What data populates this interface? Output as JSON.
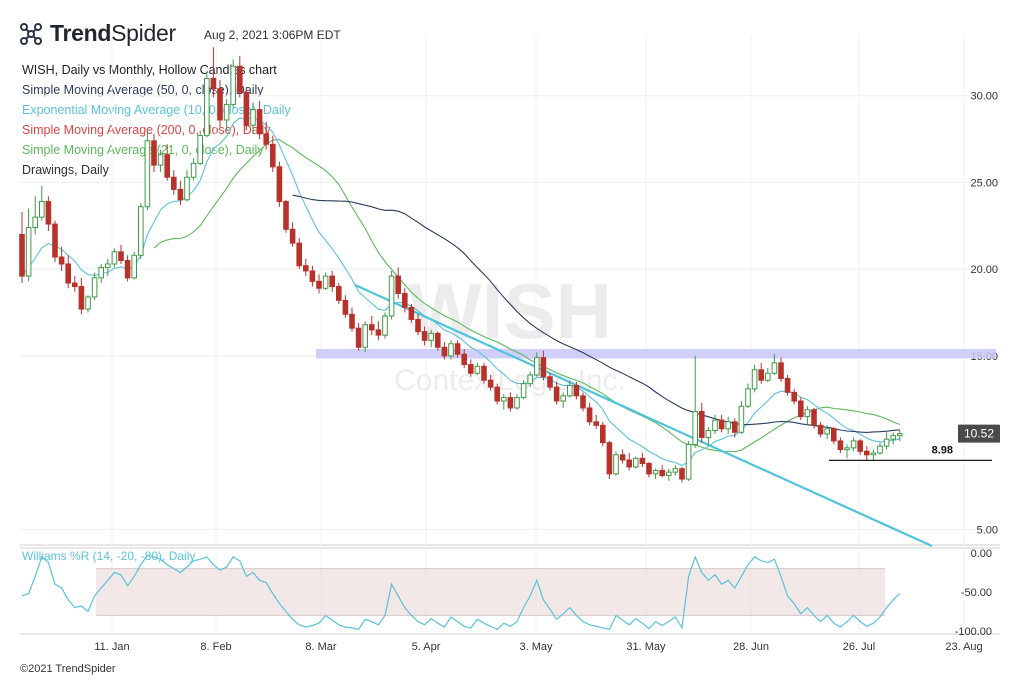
{
  "header": {
    "brand_name_bold": "Trend",
    "brand_name_light": "Spider",
    "timestamp": "Aug 2, 2021 3:06PM EDT",
    "chart_title": "WISH, Daily vs Monthly, Hollow Candles chart"
  },
  "legend": [
    {
      "label": "Simple Moving Average (50, 0, close), Daily",
      "color": "#2b3a5e"
    },
    {
      "label": "Exponential Moving Average (10, 0, close), Daily",
      "color": "#5bc2dc"
    },
    {
      "label": "Simple Moving Average (200, 0, close), Daily",
      "color": "#d64545"
    },
    {
      "label": "Simple Moving Average (21, 0, close), Daily",
      "color": "#5cb85c"
    },
    {
      "label": "Drawings, Daily",
      "color": "#2b2f36"
    }
  ],
  "watermark": {
    "symbol": "WISH",
    "company": "ContextLogic Inc."
  },
  "lower_panel": {
    "label": "Williams %R (14, -20, -80), Daily",
    "color": "#5bc2dc"
  },
  "footer": {
    "copyright": "©2021 TrendSpider"
  },
  "colors": {
    "up": "#3f9a4a",
    "down": "#b8322c",
    "resistance_band": "#c7c7f8",
    "trendline": "#4fc3dc"
  },
  "chart_data": {
    "type": "candlestick",
    "symbol": "WISH",
    "price_axis": {
      "ticks": [
        5,
        10.52,
        15,
        20,
        25,
        30
      ],
      "tick_labels": [
        "5.00",
        "",
        "15.00",
        "20.00",
        "25.00",
        "30.00"
      ],
      "ylim": [
        4.1,
        33.5
      ]
    },
    "last_price": "10.52",
    "support_level": {
      "value": 8.98,
      "label": "8.98"
    },
    "resistance_zone": {
      "low": 14.85,
      "high": 15.4,
      "label": "15.00"
    },
    "x_ticks": [
      "11. Jan",
      "8. Feb",
      "8. Mar",
      "5. Apr",
      "3. May",
      "31. May",
      "28. Jun",
      "26. Jul",
      "23. Aug"
    ],
    "ohlc": [
      [
        22.0,
        23.3,
        19.2,
        19.6
      ],
      [
        19.6,
        23.5,
        19.3,
        22.4
      ],
      [
        22.4,
        24.2,
        22.0,
        23.0
      ],
      [
        23.0,
        24.8,
        22.8,
        23.9
      ],
      [
        23.9,
        24.2,
        22.2,
        22.6
      ],
      [
        22.6,
        22.8,
        20.4,
        20.7
      ],
      [
        20.7,
        21.3,
        19.9,
        20.3
      ],
      [
        20.3,
        20.8,
        18.9,
        19.2
      ],
      [
        19.2,
        19.6,
        18.7,
        19.0
      ],
      [
        19.0,
        19.5,
        17.4,
        17.7
      ],
      [
        17.7,
        18.5,
        17.5,
        18.4
      ],
      [
        18.4,
        19.8,
        18.2,
        19.5
      ],
      [
        19.5,
        20.3,
        19.2,
        20.1
      ],
      [
        20.1,
        20.6,
        19.6,
        20.3
      ],
      [
        20.3,
        21.2,
        20.1,
        21.0
      ],
      [
        21.0,
        21.4,
        20.3,
        20.5
      ],
      [
        20.5,
        20.8,
        19.3,
        19.5
      ],
      [
        19.5,
        21.0,
        19.4,
        20.8
      ],
      [
        20.8,
        23.8,
        20.6,
        23.6
      ],
      [
        23.6,
        28.0,
        23.4,
        27.4
      ],
      [
        27.4,
        27.8,
        25.6,
        26.0
      ],
      [
        26.0,
        26.9,
        25.6,
        26.6
      ],
      [
        26.6,
        27.2,
        25.1,
        25.3
      ],
      [
        25.3,
        25.7,
        24.3,
        24.6
      ],
      [
        24.6,
        25.1,
        23.7,
        24.0
      ],
      [
        24.0,
        25.7,
        23.9,
        25.3
      ],
      [
        25.3,
        26.4,
        25.1,
        26.1
      ],
      [
        26.1,
        28.0,
        26.0,
        27.7
      ],
      [
        27.7,
        31.4,
        27.6,
        31.0
      ],
      [
        31.0,
        32.8,
        29.9,
        30.4
      ],
      [
        30.4,
        30.9,
        28.2,
        28.6
      ],
      [
        28.6,
        29.8,
        28.0,
        29.5
      ],
      [
        29.5,
        32.1,
        29.3,
        31.7
      ],
      [
        31.7,
        32.3,
        29.9,
        30.2
      ],
      [
        30.2,
        30.5,
        28.0,
        28.3
      ],
      [
        28.3,
        29.6,
        27.8,
        29.2
      ],
      [
        29.2,
        29.7,
        27.5,
        27.8
      ],
      [
        27.8,
        28.5,
        26.9,
        27.2
      ],
      [
        27.2,
        27.7,
        25.6,
        25.9
      ],
      [
        25.9,
        26.2,
        23.6,
        23.9
      ],
      [
        23.9,
        24.0,
        22.1,
        22.3
      ],
      [
        22.3,
        22.7,
        21.3,
        21.5
      ],
      [
        21.5,
        21.8,
        20.0,
        20.2
      ],
      [
        20.2,
        20.6,
        19.6,
        19.9
      ],
      [
        19.9,
        20.2,
        19.0,
        19.3
      ],
      [
        19.3,
        19.7,
        18.6,
        18.9
      ],
      [
        18.9,
        19.8,
        18.8,
        19.6
      ],
      [
        19.6,
        19.9,
        18.7,
        19.0
      ],
      [
        19.0,
        19.2,
        18.0,
        18.2
      ],
      [
        18.2,
        18.5,
        17.2,
        17.4
      ],
      [
        17.4,
        17.8,
        16.4,
        16.6
      ],
      [
        16.6,
        16.9,
        15.3,
        15.5
      ],
      [
        15.5,
        17.0,
        15.2,
        16.8
      ],
      [
        16.8,
        17.3,
        16.2,
        16.5
      ],
      [
        16.5,
        17.0,
        15.9,
        16.2
      ],
      [
        16.2,
        17.5,
        16.0,
        17.3
      ],
      [
        17.3,
        19.9,
        17.1,
        19.6
      ],
      [
        19.6,
        20.1,
        18.3,
        18.6
      ],
      [
        18.6,
        18.9,
        17.5,
        17.8
      ],
      [
        17.8,
        18.0,
        16.9,
        17.1
      ],
      [
        17.1,
        17.4,
        16.2,
        16.4
      ],
      [
        16.4,
        16.7,
        15.6,
        15.9
      ],
      [
        15.9,
        16.5,
        15.5,
        16.3
      ],
      [
        16.3,
        16.4,
        15.3,
        15.5
      ],
      [
        15.5,
        15.8,
        14.8,
        15.0
      ],
      [
        15.0,
        15.9,
        14.8,
        15.7
      ],
      [
        15.7,
        15.9,
        14.9,
        15.1
      ],
      [
        15.1,
        15.4,
        14.3,
        14.5
      ],
      [
        14.5,
        14.8,
        13.8,
        14.0
      ],
      [
        14.0,
        14.6,
        13.9,
        14.4
      ],
      [
        14.4,
        14.6,
        13.4,
        13.6
      ],
      [
        13.6,
        13.9,
        13.0,
        13.2
      ],
      [
        13.2,
        13.4,
        12.2,
        12.4
      ],
      [
        12.4,
        12.8,
        11.9,
        12.6
      ],
      [
        12.6,
        12.9,
        11.8,
        12.0
      ],
      [
        12.0,
        12.8,
        11.9,
        12.6
      ],
      [
        12.6,
        13.6,
        12.5,
        13.4
      ],
      [
        13.4,
        14.1,
        13.2,
        13.9
      ],
      [
        13.9,
        15.2,
        13.8,
        14.9
      ],
      [
        14.9,
        15.3,
        13.6,
        13.8
      ],
      [
        13.8,
        14.0,
        13.0,
        13.2
      ],
      [
        13.2,
        13.5,
        12.2,
        12.4
      ],
      [
        12.4,
        12.9,
        12.0,
        12.7
      ],
      [
        12.7,
        13.6,
        12.6,
        13.3
      ],
      [
        13.3,
        13.5,
        12.5,
        12.7
      ],
      [
        12.7,
        12.9,
        11.8,
        12.0
      ],
      [
        12.0,
        12.3,
        11.0,
        11.2
      ],
      [
        11.2,
        11.6,
        10.8,
        11.0
      ],
      [
        11.0,
        11.2,
        9.8,
        10.0
      ],
      [
        10.0,
        10.1,
        7.9,
        8.2
      ],
      [
        8.2,
        9.5,
        8.1,
        9.3
      ],
      [
        9.3,
        9.6,
        8.8,
        9.0
      ],
      [
        9.0,
        9.4,
        8.4,
        8.6
      ],
      [
        8.6,
        9.2,
        8.5,
        9.1
      ],
      [
        9.1,
        9.4,
        8.6,
        8.8
      ],
      [
        8.8,
        8.9,
        8.0,
        8.2
      ],
      [
        8.2,
        8.5,
        7.9,
        8.4
      ],
      [
        8.4,
        8.7,
        8.0,
        8.1
      ],
      [
        8.1,
        8.5,
        7.8,
        8.3
      ],
      [
        8.3,
        8.7,
        8.1,
        8.5
      ],
      [
        8.5,
        8.6,
        7.7,
        7.9
      ],
      [
        7.9,
        10.1,
        7.8,
        9.9
      ],
      [
        9.9,
        15.0,
        9.7,
        11.8
      ],
      [
        11.8,
        12.3,
        10.0,
        10.3
      ],
      [
        10.3,
        10.9,
        9.8,
        10.7
      ],
      [
        10.7,
        11.6,
        10.5,
        11.3
      ],
      [
        11.3,
        11.6,
        10.6,
        10.8
      ],
      [
        10.8,
        11.5,
        10.5,
        11.2
      ],
      [
        11.2,
        11.4,
        10.3,
        10.6
      ],
      [
        10.6,
        12.4,
        10.5,
        12.1
      ],
      [
        12.1,
        13.4,
        12.0,
        13.1
      ],
      [
        13.1,
        14.5,
        12.9,
        14.2
      ],
      [
        14.2,
        14.6,
        13.4,
        13.6
      ],
      [
        13.6,
        14.3,
        13.5,
        14.0
      ],
      [
        14.0,
        15.1,
        13.9,
        14.6
      ],
      [
        14.6,
        14.9,
        13.5,
        13.7
      ],
      [
        13.7,
        13.9,
        12.7,
        12.9
      ],
      [
        12.9,
        13.1,
        12.2,
        12.4
      ],
      [
        12.4,
        12.6,
        11.3,
        11.5
      ],
      [
        11.5,
        12.1,
        11.0,
        11.9
      ],
      [
        11.9,
        12.0,
        10.8,
        11.0
      ],
      [
        11.0,
        11.2,
        10.3,
        10.5
      ],
      [
        10.5,
        11.0,
        10.2,
        10.8
      ],
      [
        10.8,
        10.9,
        9.9,
        10.1
      ],
      [
        10.1,
        10.3,
        9.4,
        9.6
      ],
      [
        9.6,
        9.9,
        9.1,
        9.7
      ],
      [
        9.7,
        10.3,
        9.5,
        10.1
      ],
      [
        10.1,
        10.2,
        9.3,
        9.5
      ],
      [
        9.5,
        9.8,
        9.0,
        9.3
      ],
      [
        9.3,
        9.6,
        8.98,
        9.4
      ],
      [
        9.4,
        10.0,
        9.3,
        9.8
      ],
      [
        9.8,
        10.6,
        9.6,
        10.2
      ],
      [
        10.2,
        10.6,
        9.9,
        10.4
      ],
      [
        10.4,
        10.7,
        10.1,
        10.52
      ]
    ],
    "williams_r": {
      "ylim": [
        -100,
        0
      ],
      "levels": {
        "overbought": -20,
        "oversold": -80
      },
      "tick_labels": [
        "0.00",
        "-50.00",
        "-100.00"
      ],
      "values": [
        -55,
        -52,
        -30,
        -5,
        -12,
        -40,
        -45,
        -60,
        -70,
        -68,
        -75,
        -55,
        -45,
        -35,
        -25,
        -28,
        -42,
        -30,
        -15,
        -3,
        -5,
        -8,
        -15,
        -20,
        -25,
        -18,
        -10,
        -8,
        -5,
        -15,
        -22,
        -18,
        -5,
        -10,
        -30,
        -25,
        -35,
        -38,
        -52,
        -65,
        -75,
        -85,
        -92,
        -95,
        -93,
        -90,
        -80,
        -86,
        -92,
        -95,
        -96,
        -98,
        -85,
        -88,
        -92,
        -80,
        -40,
        -55,
        -70,
        -80,
        -88,
        -92,
        -84,
        -90,
        -95,
        -82,
        -88,
        -94,
        -96,
        -85,
        -90,
        -94,
        -98,
        -90,
        -94,
        -88,
        -70,
        -55,
        -35,
        -60,
        -72,
        -85,
        -78,
        -70,
        -80,
        -88,
        -92,
        -94,
        -96,
        -98,
        -80,
        -86,
        -92,
        -84,
        -90,
        -97,
        -88,
        -93,
        -88,
        -82,
        -96,
        -30,
        -5,
        -25,
        -35,
        -28,
        -40,
        -35,
        -45,
        -30,
        -15,
        -5,
        -10,
        -12,
        -8,
        -30,
        -55,
        -65,
        -78,
        -70,
        -80,
        -88,
        -80,
        -90,
        -95,
        -88,
        -80,
        -88,
        -94,
        -90,
        -82,
        -70,
        -60,
        -52
      ]
    },
    "overlays": {
      "sma50_note": "dark navy",
      "ema10_note": "light blue",
      "sma21_note": "green"
    }
  }
}
